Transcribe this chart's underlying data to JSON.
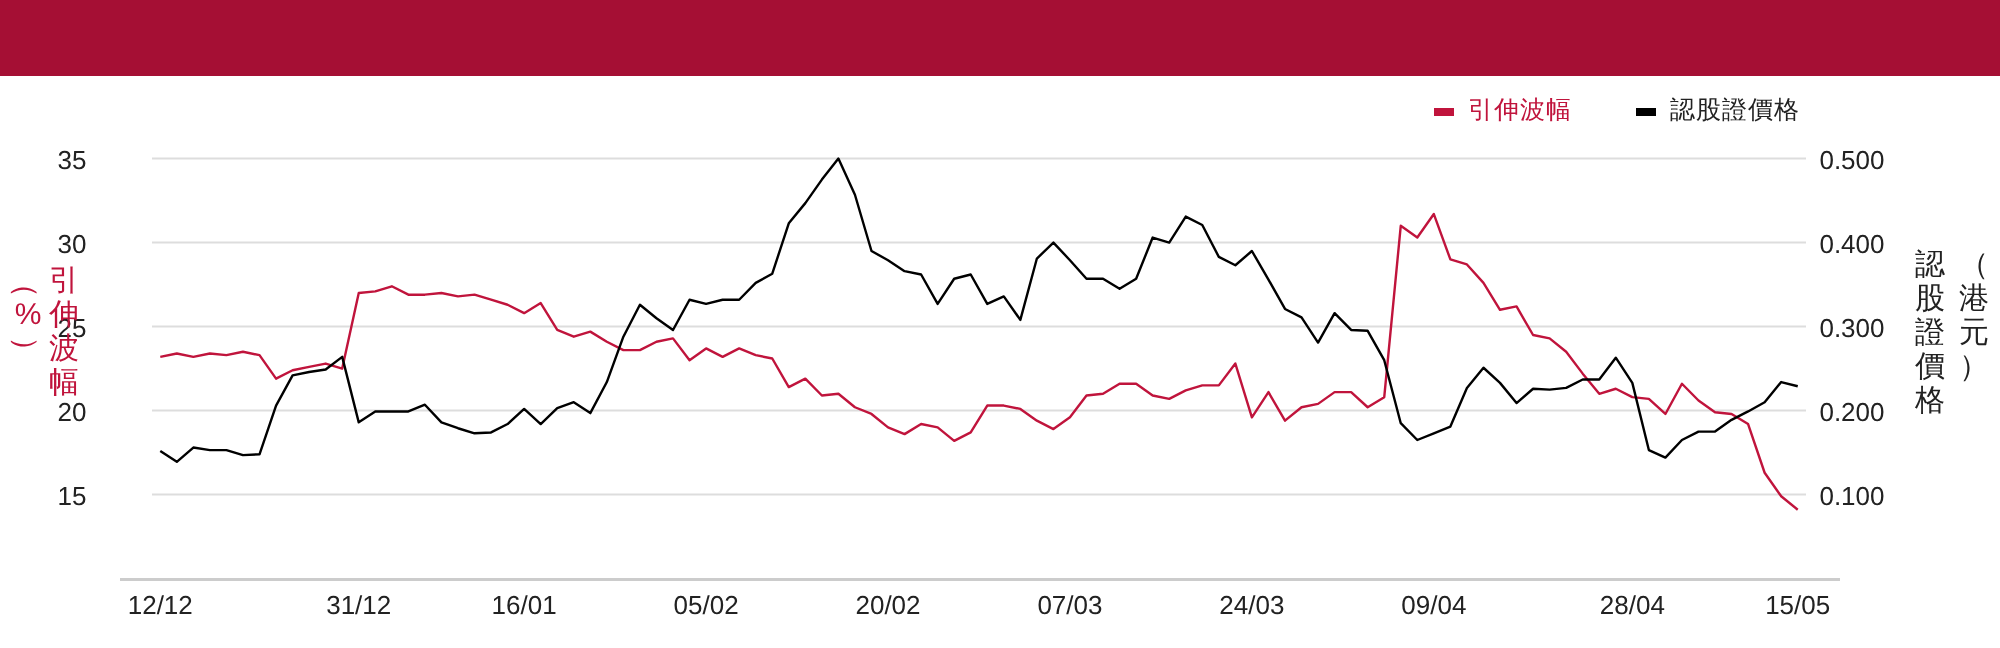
{
  "chart_data": {
    "type": "line",
    "ylabel": "引伸波幅（%）",
    "y2label": "認股證價格（港元）",
    "categories": [
      "12/12",
      null,
      null,
      null,
      null,
      null,
      null,
      null,
      null,
      null,
      null,
      null,
      "31/12",
      null,
      null,
      null,
      null,
      null,
      null,
      null,
      null,
      null,
      "16/01",
      null,
      null,
      null,
      null,
      null,
      null,
      null,
      null,
      null,
      null,
      "05/02",
      null,
      null,
      null,
      null,
      null,
      null,
      null,
      null,
      null,
      null,
      "20/02",
      null,
      null,
      null,
      null,
      null,
      null,
      null,
      null,
      null,
      null,
      "07/03",
      null,
      null,
      null,
      null,
      null,
      null,
      null,
      null,
      null,
      null,
      "24/03",
      null,
      null,
      null,
      null,
      null,
      null,
      null,
      null,
      null,
      null,
      "09/04",
      null,
      null,
      null,
      null,
      null,
      null,
      null,
      null,
      null,
      null,
      null,
      "28/04",
      null,
      null,
      null,
      null,
      null,
      null,
      null,
      null,
      null,
      "15/05"
    ],
    "series": [
      {
        "name": "引伸波幅",
        "color": "#c0143c",
        "values": [
          23.2,
          23.4,
          23.2,
          23.4,
          23.3,
          23.5,
          23.3,
          21.9,
          22.4,
          22.6,
          22.8,
          22.5,
          27.0,
          27.1,
          27.4,
          26.9,
          26.9,
          27.0,
          26.8,
          26.9,
          26.6,
          26.3,
          25.8,
          26.4,
          24.8,
          24.4,
          24.7,
          24.1,
          23.6,
          23.6,
          24.1,
          24.3,
          23.0,
          23.7,
          23.2,
          23.7,
          23.3,
          23.1,
          21.4,
          21.9,
          20.9,
          21.0,
          20.2,
          19.8,
          19.0,
          18.6,
          19.2,
          19.0,
          18.2,
          18.7,
          20.3,
          20.3,
          20.1,
          19.4,
          18.9,
          19.6,
          20.9,
          21.0,
          21.6,
          21.6,
          20.9,
          20.7,
          21.2,
          21.5,
          21.5,
          22.8,
          19.6,
          21.1,
          19.4,
          20.2,
          20.4,
          21.1,
          21.1,
          20.2,
          20.8,
          31.0,
          30.3,
          31.7,
          29.0,
          28.7,
          27.6,
          26.0,
          26.2,
          24.5,
          24.3,
          23.5,
          22.2,
          21.0,
          21.3,
          20.8,
          20.7,
          19.8,
          21.6,
          20.6,
          19.9,
          19.8,
          19.2,
          16.3,
          14.9,
          14.1
        ]
      },
      {
        "name": "認股證價格",
        "color": "#000000",
        "axis": "y2",
        "values": [
          0.152,
          0.139,
          0.156,
          0.153,
          0.153,
          0.147,
          0.148,
          0.206,
          0.242,
          0.246,
          0.249,
          0.264,
          0.186,
          0.199,
          0.199,
          0.199,
          0.207,
          0.186,
          0.179,
          0.173,
          0.174,
          0.184,
          0.202,
          0.184,
          0.203,
          0.21,
          0.197,
          0.234,
          0.288,
          0.326,
          0.31,
          0.296,
          0.332,
          0.327,
          0.332,
          0.332,
          0.352,
          0.363,
          0.423,
          0.447,
          0.475,
          0.5,
          0.457,
          0.39,
          0.379,
          0.366,
          0.362,
          0.327,
          0.357,
          0.362,
          0.327,
          0.336,
          0.308,
          0.381,
          0.4,
          0.379,
          0.357,
          0.357,
          0.345,
          0.357,
          0.406,
          0.4,
          0.431,
          0.421,
          0.383,
          0.373,
          0.39,
          0.356,
          0.321,
          0.311,
          0.281,
          0.316,
          0.296,
          0.295,
          0.26,
          0.185,
          0.165,
          0.173,
          0.181,
          0.227,
          0.251,
          0.233,
          0.209,
          0.226,
          0.225,
          0.227,
          0.237,
          0.237,
          0.263,
          0.233,
          0.153,
          0.144,
          0.165,
          0.175,
          0.175,
          0.189,
          0.199,
          0.21,
          0.234,
          0.229
        ]
      }
    ],
    "ylim": [
      10,
      35
    ],
    "yticks": [
      15,
      20,
      25,
      30,
      35
    ],
    "y2lim": [
      0,
      0.5
    ],
    "y2ticks": [
      {
        "value": 0.1,
        "label": "0.100"
      },
      {
        "value": 0.2,
        "label": "0.200"
      },
      {
        "value": 0.3,
        "label": "0.300"
      },
      {
        "value": 0.4,
        "label": "0.400"
      },
      {
        "value": 0.5,
        "label": "0.500"
      }
    ],
    "grid": "y",
    "legend": "top right",
    "marker": "none",
    "line_style": "solid"
  }
}
